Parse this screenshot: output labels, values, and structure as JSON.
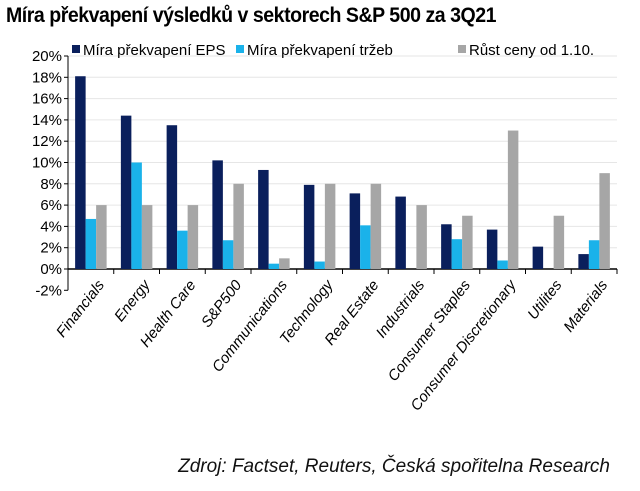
{
  "chart_data": {
    "type": "bar",
    "title": "Míra překvapení výsledků v sektorech S&P 500 za 3Q21",
    "source": "Zdroj: Factset, Reuters, Česká spořitelna Research",
    "categories": [
      "Financials",
      "Energy",
      "Health Care",
      "S&P500",
      "Communications",
      "Technology",
      "Real Estate",
      "Industrials",
      "Consumer Staples",
      "Consumer Discretionary",
      "Utilites",
      "Materials"
    ],
    "series": [
      {
        "name": "Míra překvapení EPS",
        "color": "#0a1f5c",
        "values": [
          18.1,
          14.4,
          13.5,
          10.2,
          9.3,
          7.9,
          7.1,
          6.8,
          4.2,
          3.7,
          2.1,
          1.4
        ]
      },
      {
        "name": "Míra překvapení tržeb",
        "color": "#1ab2ea",
        "values": [
          4.7,
          10.0,
          3.6,
          2.7,
          0.5,
          0.7,
          4.1,
          0,
          2.8,
          0.8,
          0,
          2.7
        ]
      },
      {
        "name": "Růst ceny od 1.10.",
        "color": "#a6a6a6",
        "values": [
          6,
          6,
          6,
          8,
          1,
          8,
          8,
          6,
          5,
          13,
          5,
          9
        ]
      }
    ],
    "ylim": [
      -2,
      20
    ],
    "yticks": [
      "-2%",
      "0%",
      "2%",
      "4%",
      "6%",
      "8%",
      "10%",
      "12%",
      "14%",
      "16%",
      "18%",
      "20%"
    ],
    "grid": true,
    "legend": "top"
  }
}
